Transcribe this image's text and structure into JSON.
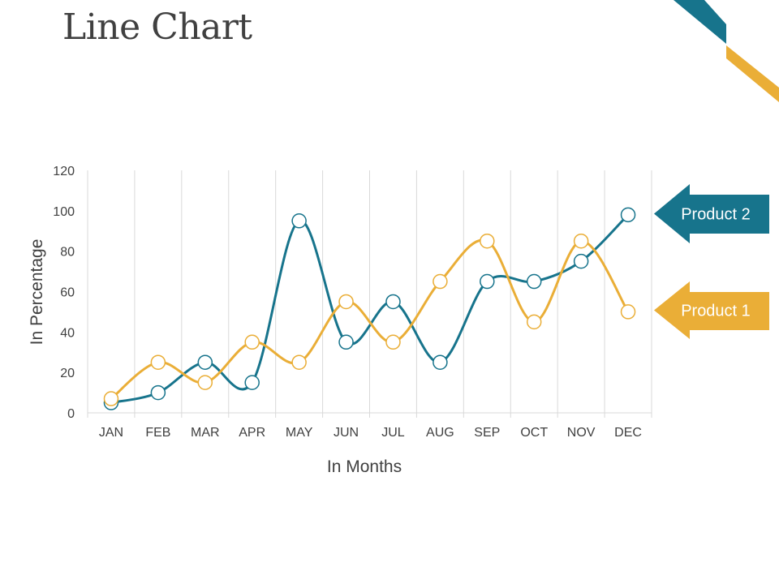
{
  "page": {
    "title": "Line Chart"
  },
  "colors": {
    "product_2": "#17748c",
    "product_1": "#eaae37",
    "grid": "#d9d9d9",
    "text": "#404040"
  },
  "chart_data": {
    "type": "line",
    "title": "",
    "xlabel": "In Months",
    "ylabel": "In Percentage",
    "categories": [
      "JAN",
      "FEB",
      "MAR",
      "APR",
      "MAY",
      "JUN",
      "JUL",
      "AUG",
      "SEP",
      "OCT",
      "NOV",
      "DEC"
    ],
    "ylim": [
      0,
      120
    ],
    "yticks": [
      0,
      20,
      40,
      60,
      80,
      100,
      120
    ],
    "grid": "vertical",
    "smooth": true,
    "series": [
      {
        "name": "Product 2",
        "color": "#17748c",
        "values": [
          5,
          10,
          25,
          15,
          95,
          35,
          55,
          25,
          65,
          65,
          75,
          98
        ]
      },
      {
        "name": "Product 1",
        "color": "#eaae37",
        "values": [
          7,
          25,
          15,
          35,
          25,
          55,
          35,
          65,
          85,
          45,
          85,
          50
        ]
      }
    ],
    "legend": "right, arrow callouts"
  }
}
